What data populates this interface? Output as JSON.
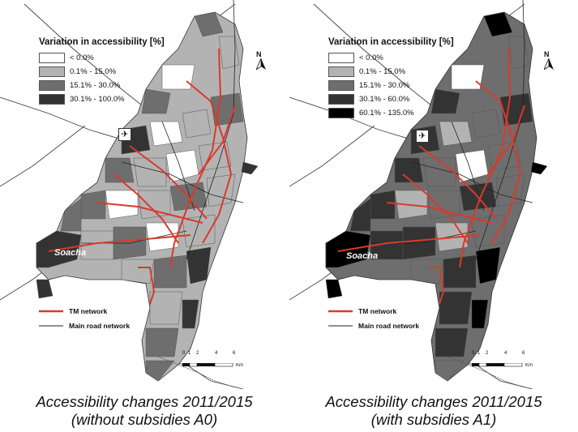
{
  "legend_title": "Variation in accessibility [%]",
  "panels": [
    {
      "legend": [
        {
          "label": "< 0.0%",
          "color": "#ffffff"
        },
        {
          "label": "0.1% - 15.0%",
          "color": "#b3b3b3"
        },
        {
          "label": "15.1% - 30.0%",
          "color": "#6e6e6e"
        },
        {
          "label": "30.1% - 100.0%",
          "color": "#333333"
        }
      ],
      "caption_line1": "Accessibility changes 2011/2015",
      "caption_line2": "(without subsidies A0)"
    },
    {
      "legend": [
        {
          "label": "< 0.0%",
          "color": "#ffffff"
        },
        {
          "label": "0.1% - 15.0%",
          "color": "#b3b3b3"
        },
        {
          "label": "15.1% - 30.0%",
          "color": "#6e6e6e"
        },
        {
          "label": "30.1% - 60.0%",
          "color": "#333333"
        },
        {
          "label": "60.1% - 135.0%",
          "color": "#000000"
        }
      ],
      "caption_line1": "Accessibility changes 2011/2015",
      "caption_line2": "(with subsidies A1)"
    }
  ],
  "network_legend": {
    "tm": "TM network",
    "road": "Main road network",
    "tm_color": "#d93a2b"
  },
  "place_label": "Soacha",
  "north_label": "N",
  "airport_icon": "airplane-icon",
  "scale": {
    "ticks": [
      "0",
      "1",
      "2",
      "4",
      "6"
    ],
    "unit": "Km"
  }
}
